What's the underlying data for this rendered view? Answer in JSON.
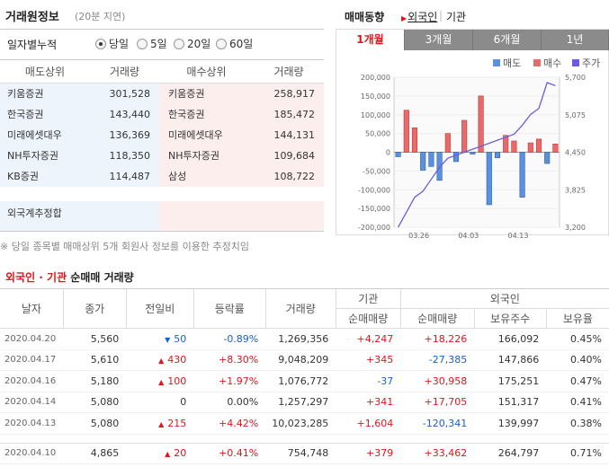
{
  "left": {
    "title": "거래원정보",
    "delay": "(20분 지연)",
    "period_label": "일자별누적",
    "periods": [
      {
        "label": "당일",
        "selected": true
      },
      {
        "label": "5일",
        "selected": false
      },
      {
        "label": "20일",
        "selected": false
      },
      {
        "label": "60일",
        "selected": false
      }
    ],
    "headers": [
      "매도상위",
      "거래량",
      "매수상위",
      "거래량"
    ],
    "rows": [
      {
        "sell_name": "키움증권",
        "sell_vol": "301,528",
        "buy_name": "키움증권",
        "buy_vol": "258,917"
      },
      {
        "sell_name": "한국증권",
        "sell_vol": "143,440",
        "buy_name": "한국증권",
        "buy_vol": "185,472"
      },
      {
        "sell_name": "미래에셋대우",
        "sell_vol": "136,369",
        "buy_name": "미래에셋대우",
        "buy_vol": "144,131"
      },
      {
        "sell_name": "NH투자증권",
        "sell_vol": "118,350",
        "buy_name": "NH투자증권",
        "buy_vol": "109,684"
      },
      {
        "sell_name": "KB증권",
        "sell_vol": "114,487",
        "buy_name": "삼성",
        "buy_vol": "108,722"
      }
    ],
    "foreign_estimate": "외국계추정합",
    "note": "※ 당일 종목별 매매상위 5개 회원사 정보를 이용한 추정치임"
  },
  "trend": {
    "title": "매매동향",
    "tab_foreign": "외국인",
    "sep": "|",
    "tab_inst": "기관",
    "period_tabs": [
      {
        "label": "1개월",
        "active": true
      },
      {
        "label": "3개월",
        "active": false
      },
      {
        "label": "6개월",
        "active": false
      },
      {
        "label": "1년",
        "active": false
      }
    ],
    "legend": [
      {
        "label": "매도",
        "color": "#5b8fe0"
      },
      {
        "label": "매수",
        "color": "#e86a6a"
      },
      {
        "label": "주가",
        "color": "#6a5ee0"
      }
    ]
  },
  "chart_data": {
    "type": "bar",
    "left_axis": {
      "ticks": [
        "200,000",
        "150,000",
        "100,000",
        "50,000",
        "0",
        "-50,000",
        "-100,000",
        "-150,000",
        "-200,000"
      ],
      "range": [
        -200000,
        200000
      ]
    },
    "right_axis": {
      "ticks": [
        "5,700",
        "5,075",
        "4,450",
        "3,825",
        "3,200"
      ],
      "range": [
        3200,
        5700
      ]
    },
    "x_tick_labels": [
      "03.26",
      "04.03",
      "04.13"
    ],
    "net_bars": [
      -12000,
      112000,
      65000,
      -48000,
      -38000,
      -75000,
      50000,
      -25000,
      85000,
      -5000,
      150000,
      -140000,
      -15000,
      45000,
      30000,
      -120000,
      25000,
      35000,
      -30000,
      22000
    ],
    "price_line": [
      3200,
      3450,
      3700,
      3800,
      4000,
      4200,
      4350,
      4400,
      4450,
      4500,
      4550,
      4600,
      4650,
      4700,
      4750,
      4900,
      5080,
      5180,
      5610,
      5560
    ]
  },
  "net": {
    "title_a": "외국인 · 기관",
    "title_b": " 순매매 거래량",
    "headers": {
      "date": "날자",
      "close": "종가",
      "change": "전일비",
      "rate": "등락률",
      "volume": "거래량",
      "inst": "기관",
      "inst_net": "순매매량",
      "foreign": "외국인",
      "foreign_net": "순매매량",
      "foreign_hold": "보유주수",
      "foreign_ratio": "보유율"
    },
    "rows": [
      {
        "date": "2020.04.20",
        "close": "5,560",
        "dir": "down",
        "change": "50",
        "rate": "-0.89%",
        "volume": "1,269,356",
        "inst_net": "+4,247",
        "foreign_net": "+18,226",
        "hold": "166,092",
        "ratio": "0.45%"
      },
      {
        "date": "2020.04.17",
        "close": "5,610",
        "dir": "up",
        "change": "430",
        "rate": "+8.30%",
        "volume": "9,048,209",
        "inst_net": "+345",
        "foreign_net": "-27,385",
        "hold": "147,866",
        "ratio": "0.40%"
      },
      {
        "date": "2020.04.16",
        "close": "5,180",
        "dir": "up",
        "change": "100",
        "rate": "+1.97%",
        "volume": "1,076,772",
        "inst_net": "-37",
        "foreign_net": "+30,958",
        "hold": "175,251",
        "ratio": "0.47%"
      },
      {
        "date": "2020.04.14",
        "close": "5,080",
        "dir": "none",
        "change": "0",
        "rate": "0.00%",
        "volume": "1,257,297",
        "inst_net": "+341",
        "foreign_net": "+17,705",
        "hold": "151,317",
        "ratio": "0.41%"
      },
      {
        "date": "2020.04.13",
        "close": "5,080",
        "dir": "up",
        "change": "215",
        "rate": "+4.42%",
        "volume": "10,023,285",
        "inst_net": "+1,604",
        "foreign_net": "-120,341",
        "hold": "139,997",
        "ratio": "0.38%"
      },
      {
        "date": "2020.04.10",
        "close": "4,865",
        "dir": "up",
        "change": "20",
        "rate": "+0.41%",
        "volume": "754,748",
        "inst_net": "+379",
        "foreign_net": "+33,462",
        "hold": "264,797",
        "ratio": "0.71%"
      }
    ]
  }
}
